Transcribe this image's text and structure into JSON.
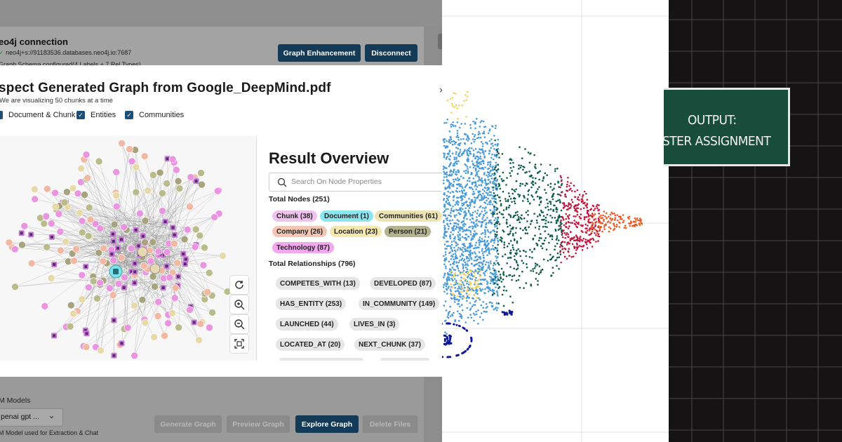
{
  "connection": {
    "title": "eo4j connection",
    "url": "neo4j+s://91183536.databases.neo4j.io:7687",
    "schema": "Graph Schema configured(4 Labels + 7 Rel Types)",
    "graph_enhancement_label": "Graph Enhancement",
    "disconnect_label": "Disconnect"
  },
  "modal": {
    "title": "spect Generated Graph from Google_DeepMind.pdf",
    "subtitle": "We are visualizing 50 chunks at a time",
    "close_icon": "×",
    "checkboxes": [
      {
        "label": "Document & Chunk",
        "checked": true
      },
      {
        "label": "Entities",
        "checked": true
      },
      {
        "label": "Communities",
        "checked": true
      }
    ]
  },
  "graph": {
    "controls": [
      "refresh-icon",
      "zoom-in-icon",
      "zoom-out-icon",
      "fit-screen-icon"
    ],
    "colors": {
      "chunk": "#e29ce6",
      "community": "#b9bb8b",
      "company": "#f1b9a3",
      "person": "#a6a37e",
      "tech": "#ea95e0",
      "doc": "#7fe1ea",
      "location": "#e8d9a8",
      "edge": "#8a8a8a"
    }
  },
  "results": {
    "title": "Result Overview",
    "search_placeholder": "Search On Node Properties",
    "total_nodes_label": "Total Nodes (251)",
    "node_tags": [
      {
        "label": "Chunk (38)",
        "color": "#f0c3ef"
      },
      {
        "label": "Document (1)",
        "color": "#8be6f0"
      },
      {
        "label": "Communities (61)",
        "color": "#ece4b3"
      },
      {
        "label": "Company (26)",
        "color": "#f3c7b3"
      },
      {
        "label": "Location (23)",
        "color": "#f5e7b0"
      },
      {
        "label": "Person (21)",
        "color": "#b5b38d"
      },
      {
        "label": "Technology (87)",
        "color": "#f2a8ec"
      }
    ],
    "total_rels_label": "Total Relationships (796)",
    "rel_tags": [
      "COMPETES_WITH (13)",
      "DEVELOPED (87)",
      "HAS_ENTITY (253)",
      "IN_COMMUNITY (149)",
      "LAUNCHED (44)",
      "LIVES_IN (3)",
      "LOCATED_AT (20)",
      "NEXT_CHUNK (37)"
    ]
  },
  "footer": {
    "models_label": "M Models",
    "model_value": "penai gpt ...",
    "model_note": "M Model used for Extraction & Chat",
    "generate_label": "Generate Graph",
    "preview_label": "Preview Graph",
    "explore_label": "Explore Graph",
    "delete_label": "Delete Files"
  },
  "board": {
    "line1": "OUTPUT:",
    "line2": "STER ASSIGNMENT"
  }
}
